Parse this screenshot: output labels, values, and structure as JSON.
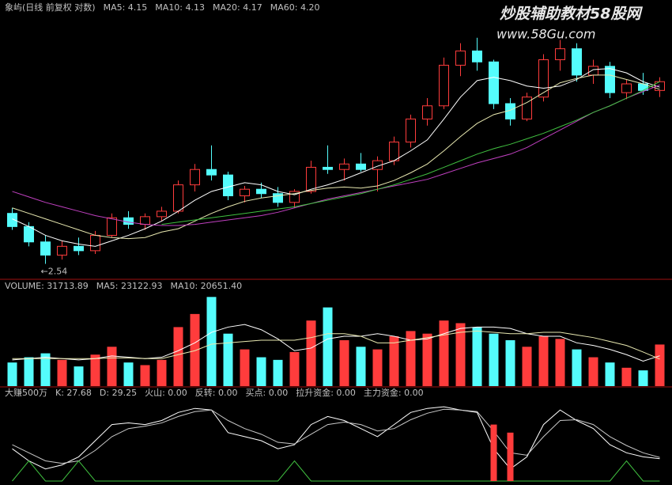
{
  "watermark": {
    "title": "炒股辅助教材58股网",
    "url": "www.58Gu.com"
  },
  "chart_data": [
    {
      "type": "candlestick",
      "title": "象屿(日线 前复权 对数)",
      "up_color": "#ff3c3c",
      "down_color": "#54fcfc",
      "ylim": [
        2.45,
        4.8
      ],
      "ohlc": [
        [
          3.0,
          3.05,
          2.85,
          2.88
        ],
        [
          2.88,
          2.92,
          2.7,
          2.74
        ],
        [
          2.74,
          2.8,
          2.54,
          2.62
        ],
        [
          2.62,
          2.75,
          2.58,
          2.7
        ],
        [
          2.7,
          2.78,
          2.62,
          2.66
        ],
        [
          2.66,
          2.84,
          2.63,
          2.8
        ],
        [
          2.8,
          3.0,
          2.78,
          2.96
        ],
        [
          2.96,
          3.02,
          2.86,
          2.9
        ],
        [
          2.9,
          3.0,
          2.85,
          2.97
        ],
        [
          2.97,
          3.06,
          2.93,
          3.02
        ],
        [
          3.02,
          3.3,
          3.0,
          3.26
        ],
        [
          3.26,
          3.45,
          3.2,
          3.4
        ],
        [
          3.4,
          3.62,
          3.3,
          3.35
        ],
        [
          3.35,
          3.38,
          3.12,
          3.16
        ],
        [
          3.16,
          3.25,
          3.1,
          3.22
        ],
        [
          3.22,
          3.28,
          3.14,
          3.18
        ],
        [
          3.18,
          3.24,
          3.06,
          3.1
        ],
        [
          3.1,
          3.22,
          3.05,
          3.2
        ],
        [
          3.2,
          3.48,
          3.18,
          3.42
        ],
        [
          3.42,
          3.62,
          3.36,
          3.4
        ],
        [
          3.4,
          3.5,
          3.3,
          3.45
        ],
        [
          3.45,
          3.55,
          3.38,
          3.4
        ],
        [
          3.4,
          3.52,
          3.2,
          3.48
        ],
        [
          3.48,
          3.7,
          3.44,
          3.65
        ],
        [
          3.65,
          3.9,
          3.6,
          3.86
        ],
        [
          3.86,
          4.05,
          3.8,
          3.98
        ],
        [
          3.98,
          4.42,
          3.95,
          4.35
        ],
        [
          4.35,
          4.55,
          4.25,
          4.48
        ],
        [
          4.48,
          4.6,
          4.3,
          4.38
        ],
        [
          4.38,
          4.4,
          3.95,
          4.0
        ],
        [
          4.0,
          4.05,
          3.8,
          3.86
        ],
        [
          3.86,
          4.1,
          3.84,
          4.06
        ],
        [
          4.06,
          4.45,
          4.02,
          4.4
        ],
        [
          4.4,
          4.58,
          4.3,
          4.5
        ],
        [
          4.5,
          4.55,
          4.2,
          4.26
        ],
        [
          4.26,
          4.4,
          4.18,
          4.34
        ],
        [
          4.34,
          4.38,
          4.05,
          4.1
        ],
        [
          4.1,
          4.22,
          4.04,
          4.18
        ],
        [
          4.18,
          4.28,
          4.08,
          4.12
        ],
        [
          4.12,
          4.24,
          4.06,
          4.2
        ]
      ],
      "annotations": [
        {
          "text": "←2.54",
          "value": 2.54
        }
      ],
      "series": [
        {
          "name": "MA5: 4.15",
          "color": "#ffffff",
          "values": [
            2.95,
            2.88,
            2.8,
            2.75,
            2.72,
            2.7,
            2.75,
            2.8,
            2.86,
            2.93,
            3.02,
            3.12,
            3.2,
            3.24,
            3.28,
            3.26,
            3.2,
            3.17,
            3.22,
            3.26,
            3.31,
            3.37,
            3.43,
            3.48,
            3.57,
            3.67,
            3.86,
            4.06,
            4.21,
            4.24,
            4.21,
            4.16,
            4.14,
            4.16,
            4.22,
            4.31,
            4.32,
            4.28,
            4.2,
            4.15
          ]
        },
        {
          "name": "MA10: 4.13",
          "color": "#e8e8b0",
          "values": [
            3.05,
            3.0,
            2.95,
            2.9,
            2.85,
            2.8,
            2.78,
            2.77,
            2.78,
            2.83,
            2.86,
            2.93,
            3.0,
            3.06,
            3.11,
            3.14,
            3.16,
            3.18,
            3.21,
            3.23,
            3.24,
            3.23,
            3.25,
            3.3,
            3.37,
            3.45,
            3.57,
            3.7,
            3.82,
            3.9,
            3.94,
            4.01,
            4.1,
            4.19,
            4.23,
            4.26,
            4.26,
            4.22,
            4.18,
            4.13
          ]
        },
        {
          "name": "MA20: 4.17",
          "color": "#c040c0",
          "values": [
            3.2,
            3.15,
            3.1,
            3.06,
            3.02,
            2.98,
            2.95,
            2.92,
            2.9,
            2.89,
            2.89,
            2.9,
            2.92,
            2.94,
            2.96,
            2.98,
            3.01,
            3.05,
            3.09,
            3.13,
            3.16,
            3.19,
            3.22,
            3.25,
            3.28,
            3.31,
            3.36,
            3.41,
            3.46,
            3.5,
            3.54,
            3.6,
            3.68,
            3.76,
            3.84,
            3.92,
            3.98,
            4.05,
            4.11,
            4.17
          ]
        },
        {
          "name": "MA60: 4.20",
          "color": "#40c040",
          "values": [
            null,
            null,
            null,
            null,
            null,
            null,
            null,
            null,
            null,
            2.9,
            2.92,
            2.94,
            2.96,
            2.98,
            3.0,
            3.02,
            3.04,
            3.06,
            3.09,
            3.12,
            3.15,
            3.18,
            3.22,
            3.26,
            3.31,
            3.36,
            3.42,
            3.48,
            3.54,
            3.59,
            3.63,
            3.68,
            3.73,
            3.79,
            3.85,
            3.92,
            3.98,
            4.05,
            4.12,
            4.2
          ]
        }
      ]
    },
    {
      "type": "bar",
      "title": "VOLUME: 31713.89",
      "ylim": [
        0,
        70000
      ],
      "values": [
        18000,
        22000,
        25000,
        20000,
        15000,
        24000,
        30000,
        18000,
        16000,
        20000,
        45000,
        55000,
        68000,
        40000,
        28000,
        22000,
        20000,
        26000,
        50000,
        60000,
        35000,
        30000,
        28000,
        38000,
        42000,
        40000,
        50000,
        48000,
        45000,
        40000,
        35000,
        30000,
        38000,
        36000,
        28000,
        22000,
        18000,
        14000,
        12000,
        31713.89
      ],
      "series": [
        {
          "name": "MA5: 23122.93",
          "color": "#ffffff",
          "values": [
            20000,
            21000,
            22000,
            21000,
            20000,
            21000,
            23000,
            22000,
            21000,
            22000,
            27000,
            33000,
            41000,
            45000,
            47000,
            43000,
            36000,
            27000,
            29000,
            36000,
            38000,
            38000,
            40000,
            38000,
            35000,
            36000,
            40000,
            44000,
            45000,
            45000,
            44000,
            40000,
            38000,
            38000,
            33000,
            31000,
            28000,
            24000,
            19000,
            23122.93
          ]
        },
        {
          "name": "MA10: 20651.40",
          "color": "#e8e8b0",
          "values": [
            21000,
            21000,
            21000,
            21000,
            21000,
            21000,
            21500,
            21500,
            21000,
            21000,
            24000,
            27000,
            32000,
            33000,
            34000,
            35000,
            35000,
            35000,
            37000,
            40000,
            40000,
            38000,
            33000,
            33000,
            35000,
            37000,
            39000,
            41000,
            42000,
            41000,
            40000,
            40000,
            41000,
            41000,
            39000,
            37000,
            34000,
            31000,
            26000,
            20651.4
          ]
        }
      ]
    },
    {
      "type": "line",
      "title": "大赚500万",
      "ylim": [
        0,
        100
      ],
      "series": [
        {
          "name": "K: 27.68",
          "color": "#ffffff",
          "type": "line",
          "values": [
            40,
            25,
            15,
            20,
            30,
            50,
            70,
            72,
            70,
            75,
            85,
            90,
            88,
            60,
            55,
            50,
            40,
            45,
            70,
            80,
            75,
            65,
            55,
            70,
            85,
            90,
            92,
            88,
            85,
            40,
            15,
            30,
            70,
            88,
            75,
            65,
            45,
            35,
            30,
            27.68
          ]
        },
        {
          "name": "D: 29.25",
          "color": "#c8c8c8",
          "type": "line",
          "values": [
            45,
            35,
            25,
            22,
            25,
            38,
            55,
            65,
            68,
            72,
            80,
            86,
            88,
            75,
            65,
            58,
            48,
            46,
            58,
            70,
            73,
            70,
            62,
            65,
            76,
            84,
            89,
            88,
            86,
            62,
            35,
            32,
            55,
            75,
            76,
            70,
            55,
            44,
            35,
            29.25
          ]
        },
        {
          "name": "火山: 0.00",
          "color": "#c040c0",
          "type": "label"
        },
        {
          "name": "反转: 0.00",
          "color": "#40c040",
          "type": "line",
          "values": [
            0,
            25,
            0,
            0,
            25,
            0,
            0,
            0,
            0,
            0,
            0,
            0,
            0,
            0,
            0,
            0,
            0,
            25,
            0,
            0,
            0,
            0,
            0,
            0,
            0,
            0,
            0,
            0,
            0,
            0,
            0,
            0,
            0,
            0,
            0,
            0,
            0,
            25,
            0,
            0
          ]
        },
        {
          "name": "买点: 0.00",
          "color": "#e0e0e0",
          "type": "label"
        },
        {
          "name": "拉升资金: 0.00",
          "color": "#ff3c3c",
          "type": "bar",
          "values": [
            0,
            0,
            0,
            0,
            0,
            0,
            0,
            0,
            0,
            0,
            0,
            0,
            0,
            0,
            0,
            0,
            0,
            0,
            0,
            0,
            0,
            0,
            0,
            0,
            0,
            0,
            0,
            0,
            0,
            70,
            60,
            0,
            0,
            0,
            0,
            0,
            0,
            0,
            0,
            0
          ]
        },
        {
          "name": "主力资金: 0.00",
          "color": "#e0e0e0",
          "type": "label"
        }
      ]
    }
  ]
}
